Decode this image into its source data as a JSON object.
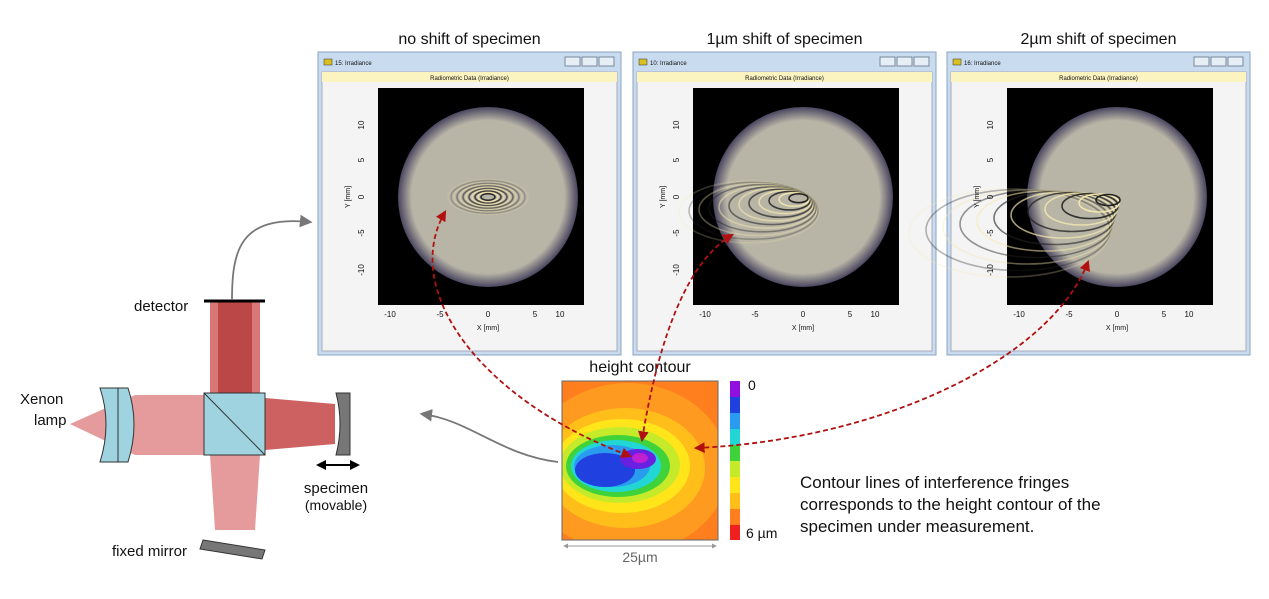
{
  "panels": [
    {
      "heading": "no shift of specimen",
      "window_title": "15: Irradiance",
      "plot_title": "Radiometric Data (Irradiance)",
      "x_label": "X [mm]",
      "y_label": "Y [mm]",
      "x_ticks": [
        "-10",
        "-5",
        "0",
        "5",
        "10"
      ],
      "y_ticks": [
        "10",
        "5",
        "0",
        "-5",
        "-10"
      ]
    },
    {
      "heading": "1µm shift of specimen",
      "window_title": "10: Irradiance",
      "plot_title": "Radiometric Data (Irradiance)",
      "x_label": "X [mm]",
      "y_label": "Y [mm]",
      "x_ticks": [
        "-10",
        "-5",
        "0",
        "5",
        "10"
      ],
      "y_ticks": [
        "10",
        "5",
        "0",
        "-5",
        "-10"
      ]
    },
    {
      "heading": "2µm shift of specimen",
      "window_title": "16: Irradiance",
      "plot_title": "Radiometric Data (Irradiance)",
      "x_label": "X [mm]",
      "y_label": "Y [mm]",
      "x_ticks": [
        "-10",
        "-5",
        "0",
        "5",
        "10"
      ],
      "y_ticks": [
        "10",
        "5",
        "0",
        "-5",
        "-10"
      ]
    }
  ],
  "setup": {
    "detector": "detector",
    "lamp": [
      "Xenon",
      "lamp"
    ],
    "specimen": [
      "specimen",
      "(movable)"
    ],
    "fixed_mirror": "fixed mirror"
  },
  "contour": {
    "title": "height contour",
    "scale_top": "0",
    "scale_bottom": "6 µm",
    "width_label": "25µm"
  },
  "caption": [
    "Contour lines of interference fringes",
    "corresponds to the height contour of the",
    "specimen under measurement."
  ]
}
